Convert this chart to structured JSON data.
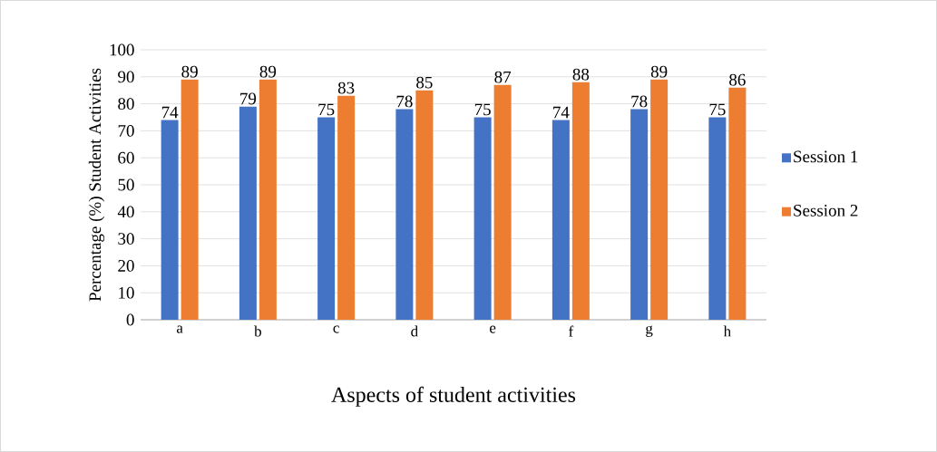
{
  "chart_data": {
    "type": "bar",
    "xlabel": "Aspects of student activities",
    "ylabel": "Percentage (%) Student Activities",
    "categories": [
      "a",
      "b",
      "c",
      "d",
      "e",
      "f",
      "g",
      "h"
    ],
    "series": [
      {
        "name": "Session 1",
        "color": "#4472c4",
        "values": [
          74,
          79,
          75,
          78,
          75,
          74,
          78,
          75
        ]
      },
      {
        "name": "Session 2",
        "color": "#ed7d31",
        "values": [
          89,
          89,
          83,
          85,
          87,
          88,
          89,
          86
        ]
      }
    ],
    "ylim": [
      0,
      100
    ],
    "yticks": [
      0,
      10,
      20,
      30,
      40,
      50,
      60,
      70,
      80,
      90,
      100
    ],
    "grid": "y",
    "data_labels": true,
    "legend": "right"
  }
}
